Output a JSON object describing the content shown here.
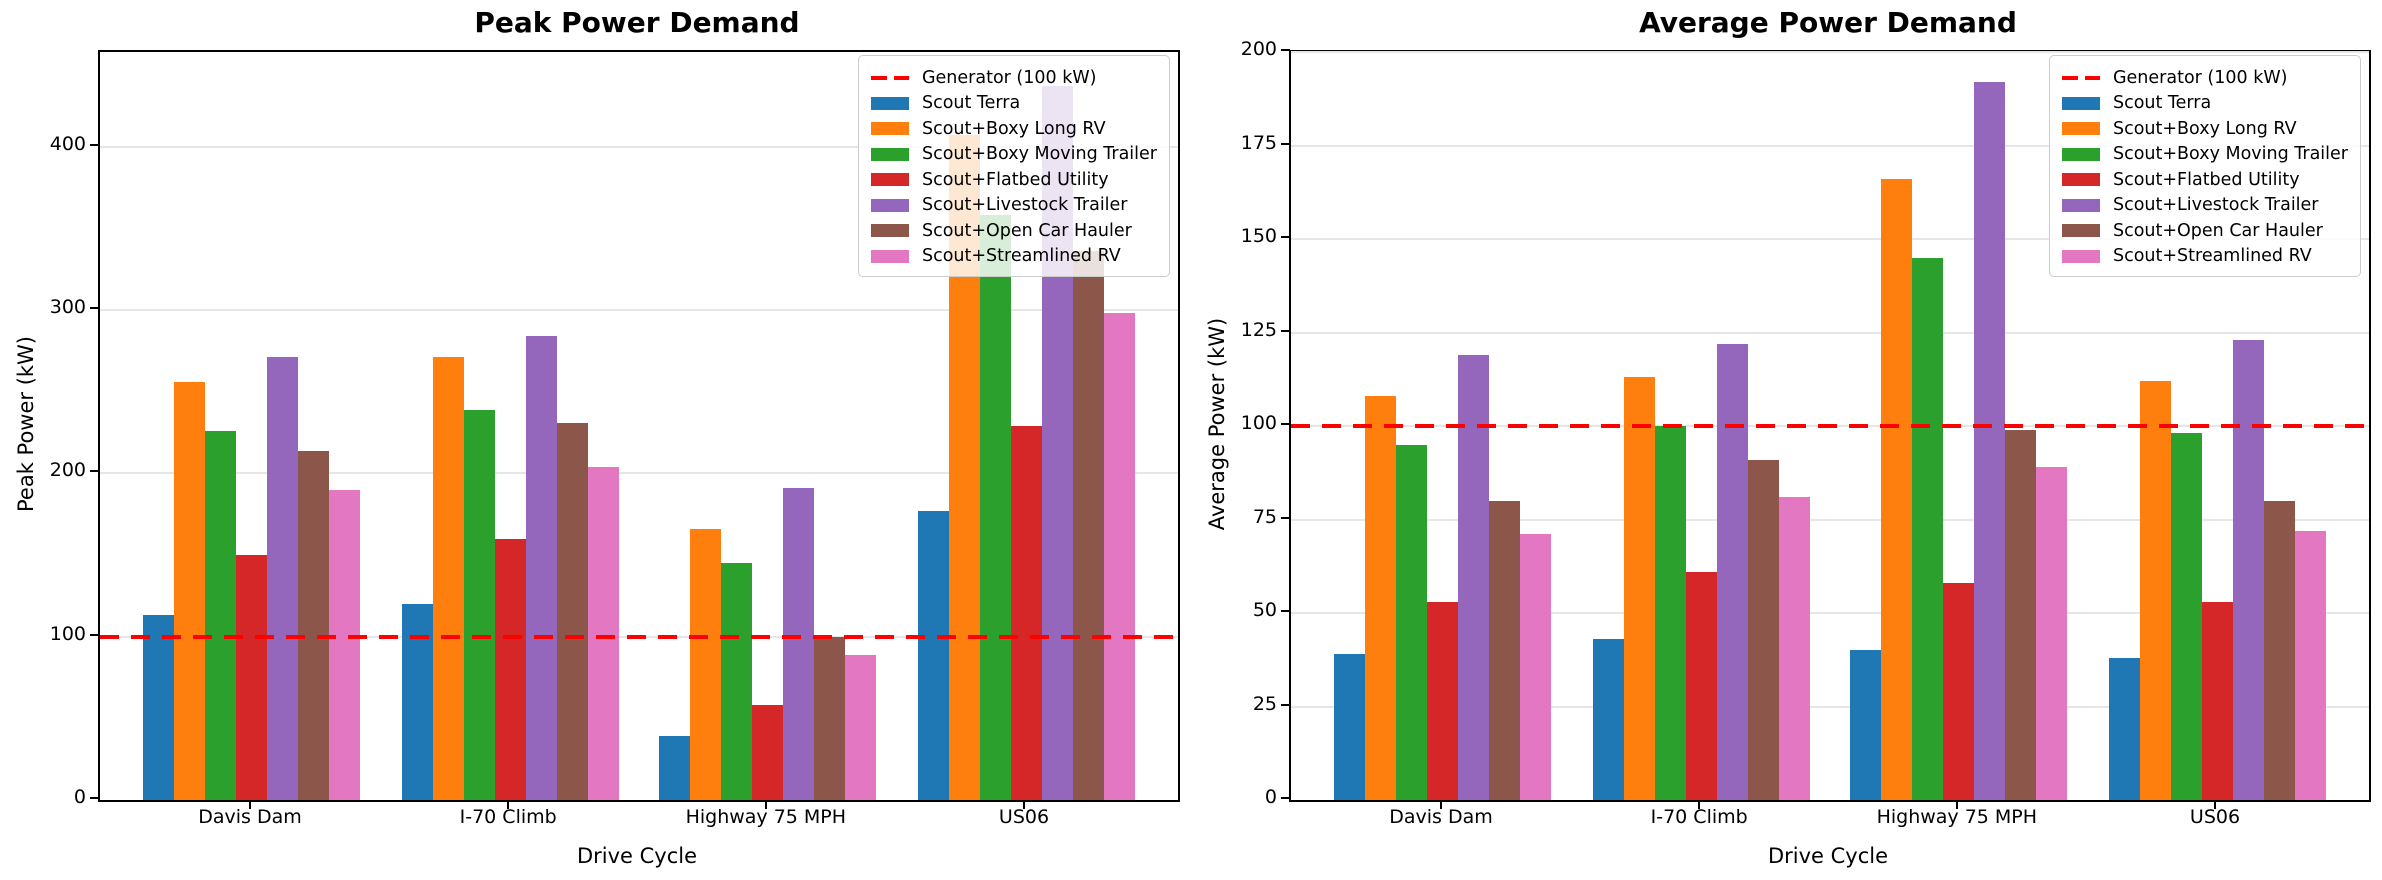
{
  "figure": {
    "background": "#ffffff",
    "grid_color": "#e6e6e6",
    "spine_color": "#000000"
  },
  "xlabel": "Drive Cycle",
  "categories": [
    "Davis Dam",
    "I-70 Climb",
    "Highway 75 MPH",
    "US06"
  ],
  "legend_labels": [
    "Generator (100 kW)",
    "Scout Terra",
    "Scout+Boxy Long RV",
    "Scout+Boxy Moving Trailer",
    "Scout+Flatbed Utility",
    "Scout+Livestock Trailer",
    "Scout+Open Car Hauler",
    "Scout+Streamlined RV"
  ],
  "chart_data": [
    {
      "type": "bar",
      "title": "Peak Power Demand",
      "xlabel": "Drive Cycle",
      "ylabel": "Peak Power (kW)",
      "categories": [
        "Davis Dam",
        "I-70 Climb",
        "Highway 75 MPH",
        "US06"
      ],
      "ylim": [
        0,
        458
      ],
      "yticks": [
        0,
        100,
        200,
        300,
        400
      ],
      "grid": true,
      "legend_position": "upper right",
      "reference_line": {
        "label": "Generator (100 kW)",
        "value": 100,
        "color": "#ff0000",
        "style": "dashed"
      },
      "series": [
        {
          "name": "Scout Terra",
          "color": "#1f77b4",
          "values": [
            113,
            120,
            39,
            177
          ]
        },
        {
          "name": "Scout+Boxy Long RV",
          "color": "#ff7f0e",
          "values": [
            256,
            271,
            166,
            407
          ]
        },
        {
          "name": "Scout+Boxy Moving Trailer",
          "color": "#2ca02c",
          "values": [
            226,
            239,
            145,
            358
          ]
        },
        {
          "name": "Scout+Flatbed Utility",
          "color": "#d62728",
          "values": [
            150,
            160,
            58,
            229
          ]
        },
        {
          "name": "Scout+Livestock Trailer",
          "color": "#9467bd",
          "values": [
            271,
            284,
            191,
            437
          ]
        },
        {
          "name": "Scout+Open Car Hauler",
          "color": "#8c564b",
          "values": [
            214,
            231,
            100,
            336
          ]
        },
        {
          "name": "Scout+Streamlined RV",
          "color": "#e377c2",
          "values": [
            190,
            204,
            89,
            298
          ]
        }
      ]
    },
    {
      "type": "bar",
      "title": "Average Power Demand",
      "xlabel": "Drive Cycle",
      "ylabel": "Average Power (kW)",
      "categories": [
        "Davis Dam",
        "I-70 Climb",
        "Highway 75 MPH",
        "US06"
      ],
      "ylim": [
        0,
        200
      ],
      "yticks": [
        0,
        25,
        50,
        75,
        100,
        125,
        150,
        175,
        200
      ],
      "grid": true,
      "legend_position": "upper right",
      "reference_line": {
        "label": "Generator (100 kW)",
        "value": 100,
        "color": "#ff0000",
        "style": "dashed"
      },
      "series": [
        {
          "name": "Scout Terra",
          "color": "#1f77b4",
          "values": [
            39,
            43,
            40,
            38
          ]
        },
        {
          "name": "Scout+Boxy Long RV",
          "color": "#ff7f0e",
          "values": [
            108,
            113,
            166,
            112
          ]
        },
        {
          "name": "Scout+Boxy Moving Trailer",
          "color": "#2ca02c",
          "values": [
            95,
            100,
            145,
            98
          ]
        },
        {
          "name": "Scout+Flatbed Utility",
          "color": "#d62728",
          "values": [
            53,
            61,
            58,
            53
          ]
        },
        {
          "name": "Scout+Livestock Trailer",
          "color": "#9467bd",
          "values": [
            119,
            122,
            192,
            123
          ]
        },
        {
          "name": "Scout+Open Car Hauler",
          "color": "#8c564b",
          "values": [
            80,
            91,
            99,
            80
          ]
        },
        {
          "name": "Scout+Streamlined RV",
          "color": "#e377c2",
          "values": [
            71,
            81,
            89,
            72
          ]
        }
      ]
    }
  ]
}
